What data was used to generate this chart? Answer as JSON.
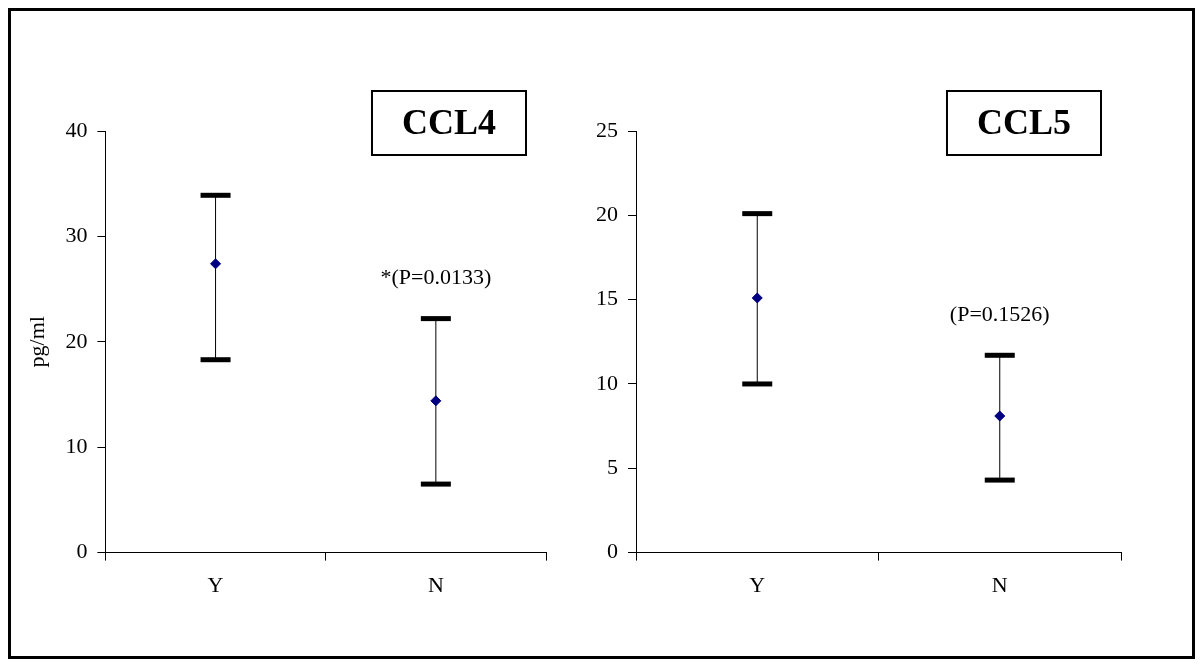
{
  "chart_data": [
    {
      "type": "scatter",
      "title": "CCL4",
      "ylabel": "pg/ml",
      "categories": [
        "Y",
        "N"
      ],
      "ylim": [
        0,
        40
      ],
      "yticks": [
        0,
        10,
        20,
        30,
        40
      ],
      "grid": false,
      "legend": false,
      "marker": "diamond",
      "series": [
        {
          "color": "#000080",
          "values": [
            27.4,
            14.4
          ],
          "errors": [
            [
              18.3,
              33.9
            ],
            [
              6.5,
              22.2
            ]
          ]
        }
      ],
      "annotations": [
        "*(P=0.0133)"
      ]
    },
    {
      "type": "scatter",
      "title": "CCL5",
      "categories": [
        "Y",
        "N"
      ],
      "ylim": [
        0,
        25
      ],
      "yticks": [
        0,
        5,
        10,
        15,
        20,
        25
      ],
      "grid": false,
      "legend": false,
      "marker": "diamond",
      "series": [
        {
          "color": "#000080",
          "values": [
            15.1,
            8.1
          ],
          "errors": [
            [
              10.0,
              20.1
            ],
            [
              4.3,
              11.7
            ]
          ]
        }
      ],
      "annotations": [
        "(P=0.1526)"
      ]
    }
  ]
}
